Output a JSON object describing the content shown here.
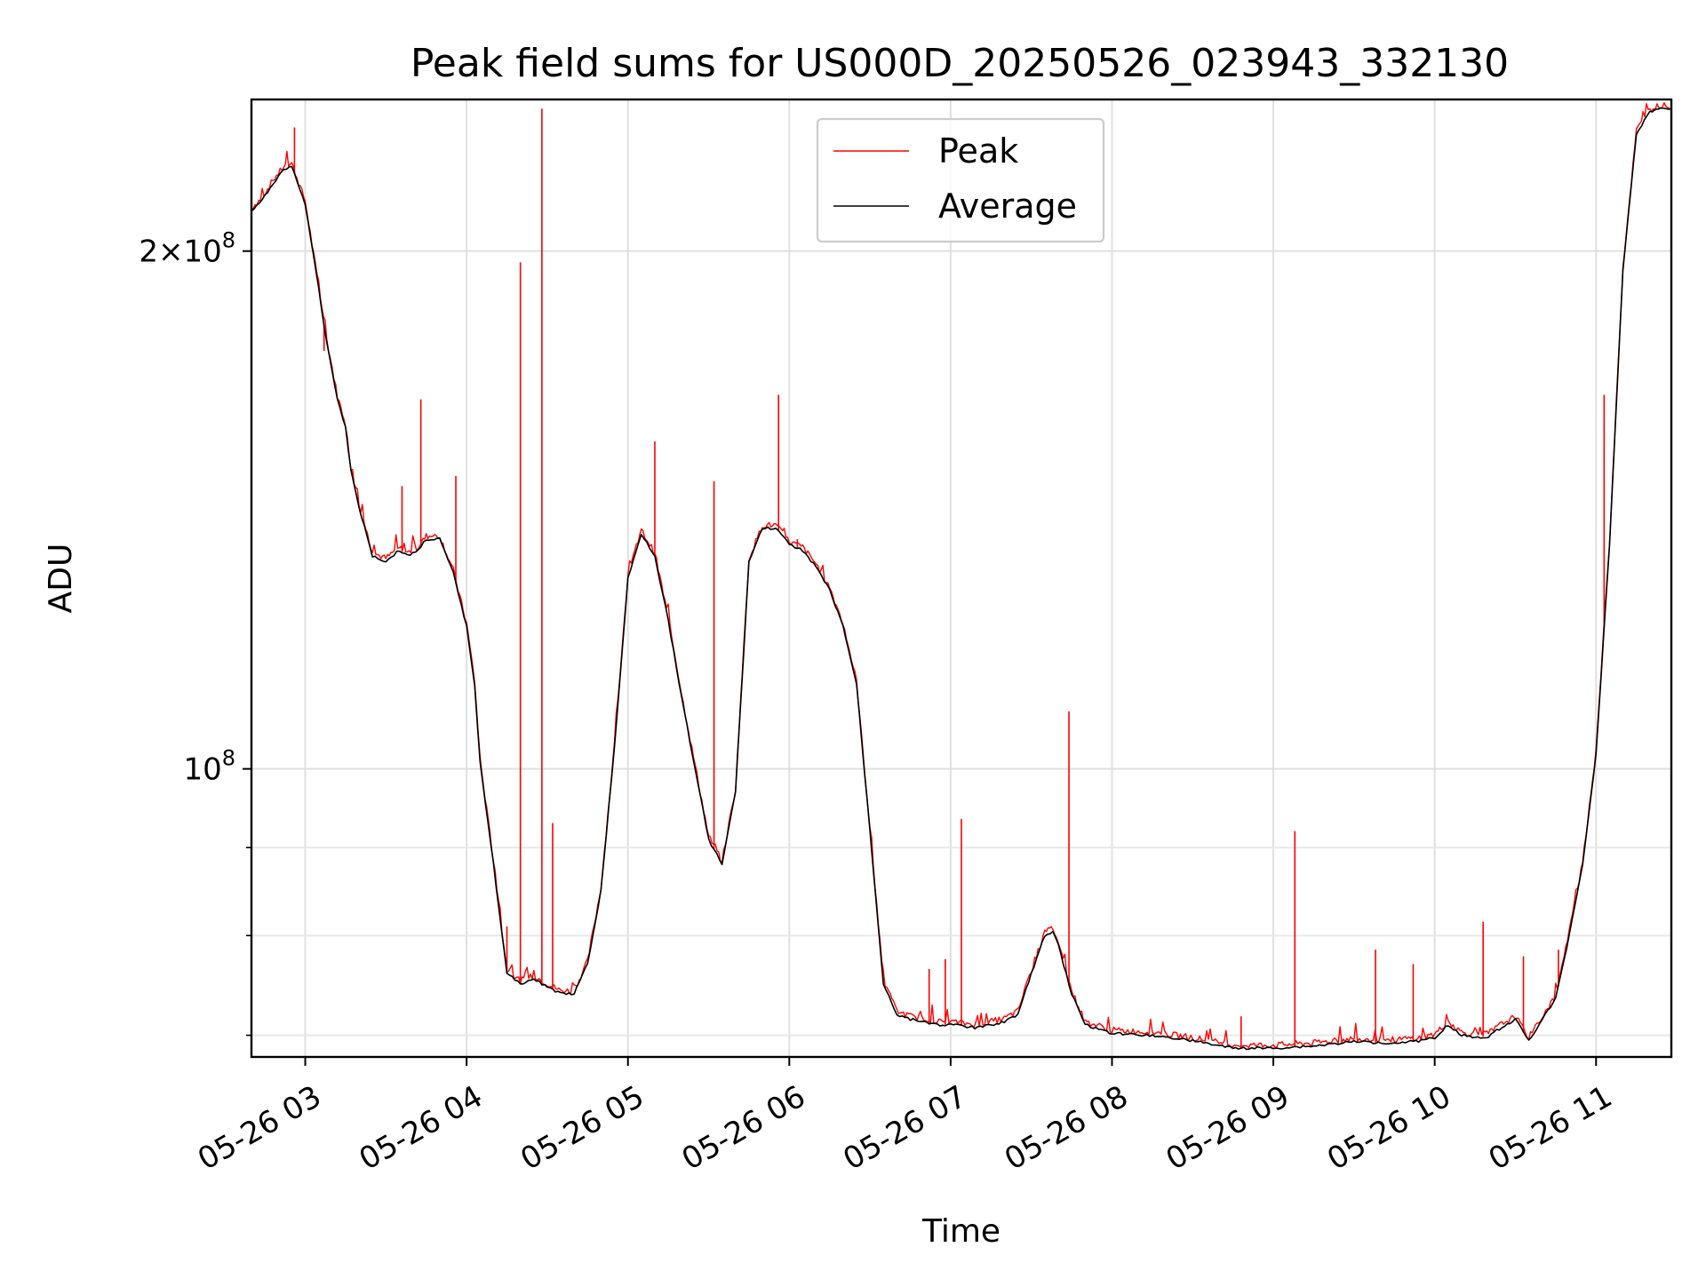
{
  "chart_data": {
    "type": "line",
    "title": "Peak field sums for US000D_20250526_023943_332130",
    "xlabel": "Time",
    "ylabel": "ADU",
    "y_scale": "log",
    "grid": true,
    "legend_placement": "upper center",
    "x_range": [
      "05-26 02:40",
      "05-26 11:28"
    ],
    "ylim": [
      68000000,
      245000000
    ],
    "x_ticks": [
      "05-26 03",
      "05-26 04",
      "05-26 05",
      "05-26 06",
      "05-26 07",
      "05-26 08",
      "05-26 09",
      "05-26 10",
      "05-26 11"
    ],
    "y_tick_labels": [
      {
        "value": 200000000,
        "mantissa": "2",
        "exponent": "8"
      },
      {
        "value": 100000000,
        "mantissa": "",
        "exponent": "8"
      }
    ],
    "y_minor_ticks": [
      70000000,
      80000000,
      90000000
    ],
    "series": [
      {
        "name": "Average",
        "color": "#000000",
        "x": [
          "05-26 02:40",
          "05-26 02:44",
          "05-26 02:48",
          "05-26 02:52",
          "05-26 02:55",
          "05-26 03:00",
          "05-26 03:05",
          "05-26 03:08",
          "05-26 03:12",
          "05-26 03:15",
          "05-26 03:17",
          "05-26 03:20",
          "05-26 03:25",
          "05-26 03:30",
          "05-26 03:35",
          "05-26 03:38",
          "05-26 03:42",
          "05-26 03:45",
          "05-26 03:50",
          "05-26 03:55",
          "05-26 04:00",
          "05-26 04:03",
          "05-26 04:05",
          "05-26 04:10",
          "05-26 04:15",
          "05-26 04:20",
          "05-26 04:25",
          "05-26 04:28",
          "05-26 04:30",
          "05-26 04:35",
          "05-26 04:40",
          "05-26 04:45",
          "05-26 04:50",
          "05-26 04:55",
          "05-26 05:00",
          "05-26 05:05",
          "05-26 05:10",
          "05-26 05:15",
          "05-26 05:20",
          "05-26 05:25",
          "05-26 05:30",
          "05-26 05:35",
          "05-26 05:40",
          "05-26 05:45",
          "05-26 05:50",
          "05-26 05:55",
          "05-26 06:00",
          "05-26 06:05",
          "05-26 06:10",
          "05-26 06:15",
          "05-26 06:20",
          "05-26 06:25",
          "05-26 06:30",
          "05-26 06:35",
          "05-26 06:40",
          "05-26 06:45",
          "05-26 06:50",
          "05-26 06:55",
          "05-26 07:00",
          "05-26 07:10",
          "05-26 07:20",
          "05-26 07:25",
          "05-26 07:30",
          "05-26 07:35",
          "05-26 07:38",
          "05-26 07:40",
          "05-26 07:45",
          "05-26 07:50",
          "05-26 08:00",
          "05-26 08:15",
          "05-26 08:30",
          "05-26 08:45",
          "05-26 09:00",
          "05-26 09:15",
          "05-26 09:30",
          "05-26 09:45",
          "05-26 09:55",
          "05-26 10:00",
          "05-26 10:05",
          "05-26 10:10",
          "05-26 10:15",
          "05-26 10:20",
          "05-26 10:25",
          "05-26 10:30",
          "05-26 10:35",
          "05-26 10:40",
          "05-26 10:45",
          "05-26 10:50",
          "05-26 10:55",
          "05-26 11:00",
          "05-26 11:05",
          "05-26 11:10",
          "05-26 11:15",
          "05-26 11:20",
          "05-26 11:24",
          "05-26 11:28"
        ],
        "y": [
          211000000,
          214000000,
          219000000,
          223000000,
          224000000,
          213000000,
          190000000,
          177000000,
          164000000,
          158000000,
          149000000,
          142000000,
          133000000,
          132000000,
          134000000,
          133000000,
          134000000,
          136000000,
          136000000,
          130000000,
          121000000,
          112000000,
          101000000,
          88000000,
          76000000,
          75000000,
          75500000,
          75000000,
          74700000,
          74000000,
          74000000,
          77000000,
          85000000,
          103000000,
          129000000,
          137000000,
          133000000,
          122000000,
          110000000,
          100000000,
          91000000,
          88000000,
          97000000,
          132000000,
          138000000,
          138000000,
          135000000,
          134000000,
          131000000,
          127000000,
          121000000,
          112000000,
          92000000,
          75000000,
          72000000,
          71500000,
          71300000,
          71000000,
          71000000,
          70700000,
          71300000,
          72000000,
          76000000,
          80000000,
          80500000,
          79000000,
          74000000,
          71000000,
          70200000,
          70000000,
          69500000,
          68800000,
          68800000,
          69000000,
          69400000,
          69300000,
          69500000,
          69800000,
          71000000,
          70000000,
          69800000,
          69900000,
          70800000,
          71500000,
          69500000,
          71500000,
          73500000,
          80000000,
          88000000,
          102000000,
          135000000,
          195000000,
          234000000,
          241000000,
          242000000,
          242000000
        ]
      },
      {
        "name": "Peak",
        "color": "#ff0000",
        "spikes": [
          {
            "x": "05-26 02:56",
            "y": 236000000
          },
          {
            "x": "05-26 03:07",
            "y": 175000000
          },
          {
            "x": "05-26 03:36",
            "y": 146000000
          },
          {
            "x": "05-26 03:43",
            "y": 164000000
          },
          {
            "x": "05-26 03:56",
            "y": 148000000
          },
          {
            "x": "05-26 04:15",
            "y": 81000000
          },
          {
            "x": "05-26 04:20",
            "y": 197000000
          },
          {
            "x": "05-26 04:28",
            "y": 242000000
          },
          {
            "x": "05-26 04:32",
            "y": 93000000
          },
          {
            "x": "05-26 05:10",
            "y": 155000000
          },
          {
            "x": "05-26 05:32",
            "y": 147000000
          },
          {
            "x": "05-26 05:56",
            "y": 165000000
          },
          {
            "x": "05-26 06:03",
            "y": 136000000
          },
          {
            "x": "05-26 06:52",
            "y": 76500000
          },
          {
            "x": "05-26 06:58",
            "y": 77500000
          },
          {
            "x": "05-26 07:04",
            "y": 93500000
          },
          {
            "x": "05-26 07:44",
            "y": 108000000
          },
          {
            "x": "05-26 08:48",
            "y": 71800000
          },
          {
            "x": "05-26 09:08",
            "y": 92000000
          },
          {
            "x": "05-26 09:38",
            "y": 78500000
          },
          {
            "x": "05-26 09:52",
            "y": 77000000
          },
          {
            "x": "05-26 10:18",
            "y": 81500000
          },
          {
            "x": "05-26 10:33",
            "y": 77800000
          },
          {
            "x": "05-26 10:46",
            "y": 78500000
          },
          {
            "x": "05-26 11:03",
            "y": 165000000
          }
        ]
      }
    ]
  }
}
